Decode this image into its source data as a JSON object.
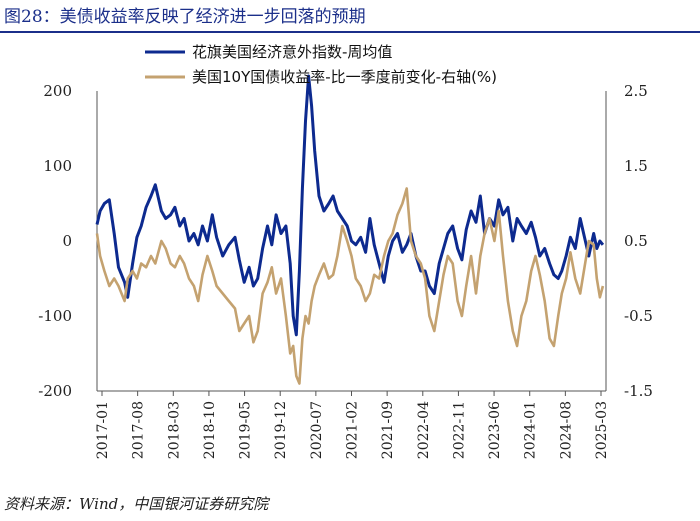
{
  "figure": {
    "title": "图28：美债收益率反映了经济进一步回落的预期",
    "source": "资料来源：Wind，中国银河证券研究院"
  },
  "colors": {
    "series1": "#0d2a8f",
    "series2": "#c4a270",
    "title": "#1b2f8a",
    "axis": "#555555"
  },
  "chart_data": {
    "type": "line",
    "title": "图28：美债收益率反映了经济进一步回落的预期",
    "x_tick_labels": [
      "2017-01",
      "2017-08",
      "2018-03",
      "2018-10",
      "2019-05",
      "2019-12",
      "2020-07",
      "2021-02",
      "2021-09",
      "2022-04",
      "2022-11",
      "2023-06",
      "2024-01",
      "2024-08",
      "2025-03"
    ],
    "x_range": [
      2017.0,
      2025.3
    ],
    "left_axis": {
      "range": [
        -200,
        200
      ],
      "ticks": [
        200,
        100,
        0,
        -100,
        -200
      ],
      "tick_labels": [
        "200",
        "100",
        "0",
        "-100",
        "-200"
      ]
    },
    "right_axis": {
      "range": [
        -1.5,
        2.5
      ],
      "ticks": [
        2.5,
        1.5,
        0.5,
        -0.5,
        -1.5
      ],
      "tick_labels": [
        "2.5",
        "1.5",
        "0.5",
        "-0.5",
        "-1.5"
      ]
    },
    "legend": {
      "placement": "top-right"
    },
    "series": [
      {
        "name": "花旗美国经济意外指数-周均值",
        "axis": "left",
        "color": "#0d2a8f",
        "x": [
          2017.0,
          2017.05,
          2017.12,
          2017.2,
          2017.28,
          2017.35,
          2017.45,
          2017.5,
          2017.58,
          2017.65,
          2017.72,
          2017.8,
          2017.88,
          2017.95,
          2018.05,
          2018.12,
          2018.2,
          2018.27,
          2018.35,
          2018.42,
          2018.5,
          2018.58,
          2018.65,
          2018.72,
          2018.8,
          2018.88,
          2018.95,
          2019.05,
          2019.15,
          2019.25,
          2019.32,
          2019.4,
          2019.48,
          2019.55,
          2019.62,
          2019.7,
          2019.78,
          2019.85,
          2019.92,
          2020.0,
          2020.08,
          2020.15,
          2020.2,
          2020.25,
          2020.3,
          2020.35,
          2020.4,
          2020.45,
          2020.5,
          2020.55,
          2020.62,
          2020.7,
          2020.78,
          2020.85,
          2020.92,
          2021.0,
          2021.08,
          2021.15,
          2021.22,
          2021.3,
          2021.38,
          2021.45,
          2021.52,
          2021.6,
          2021.68,
          2021.75,
          2021.82,
          2021.9,
          2021.98,
          2022.05,
          2022.12,
          2022.2,
          2022.28,
          2022.35,
          2022.42,
          2022.5,
          2022.58,
          2022.65,
          2022.72,
          2022.8,
          2022.88,
          2022.95,
          2023.02,
          2023.1,
          2023.18,
          2023.25,
          2023.32,
          2023.4,
          2023.48,
          2023.55,
          2023.62,
          2023.7,
          2023.78,
          2023.85,
          2023.92,
          2024.0,
          2024.08,
          2024.15,
          2024.22,
          2024.3,
          2024.38,
          2024.45,
          2024.52,
          2024.58,
          2024.65,
          2024.72,
          2024.8,
          2024.88,
          2024.95,
          2025.02,
          2025.1,
          2025.15,
          2025.2,
          2025.25
        ],
        "y": [
          22,
          40,
          50,
          55,
          10,
          -35,
          -55,
          -75,
          -30,
          5,
          20,
          45,
          60,
          75,
          40,
          30,
          35,
          45,
          20,
          30,
          0,
          10,
          -5,
          20,
          0,
          35,
          5,
          -20,
          -5,
          5,
          -25,
          -55,
          -35,
          -60,
          -50,
          -10,
          20,
          -5,
          35,
          10,
          20,
          -30,
          -100,
          -125,
          -40,
          70,
          160,
          220,
          180,
          120,
          60,
          40,
          50,
          60,
          40,
          30,
          20,
          0,
          -5,
          5,
          -15,
          30,
          -5,
          -30,
          -55,
          -20,
          0,
          10,
          -15,
          -5,
          10,
          -20,
          -40,
          -40,
          -60,
          -70,
          -30,
          -10,
          10,
          20,
          -10,
          -25,
          15,
          40,
          25,
          60,
          10,
          30,
          20,
          55,
          35,
          45,
          0,
          30,
          20,
          10,
          25,
          5,
          -20,
          -10,
          -30,
          -45,
          -50,
          -40,
          -20,
          5,
          -10,
          30,
          5,
          -20,
          10,
          -10,
          0,
          -5
        ]
      },
      {
        "name": "美国10Y国债收益率-比一季度前变化-右轴(%)",
        "axis": "right",
        "color": "#c4a270",
        "x": [
          2017.0,
          2017.05,
          2017.12,
          2017.2,
          2017.28,
          2017.35,
          2017.45,
          2017.5,
          2017.58,
          2017.65,
          2017.72,
          2017.8,
          2017.88,
          2017.95,
          2018.05,
          2018.12,
          2018.2,
          2018.27,
          2018.35,
          2018.42,
          2018.5,
          2018.58,
          2018.65,
          2018.72,
          2018.8,
          2018.88,
          2018.95,
          2019.05,
          2019.15,
          2019.25,
          2019.32,
          2019.4,
          2019.48,
          2019.55,
          2019.62,
          2019.7,
          2019.78,
          2019.85,
          2019.92,
          2020.0,
          2020.08,
          2020.15,
          2020.2,
          2020.25,
          2020.3,
          2020.35,
          2020.4,
          2020.45,
          2020.5,
          2020.55,
          2020.62,
          2020.7,
          2020.78,
          2020.85,
          2020.92,
          2021.0,
          2021.08,
          2021.15,
          2021.22,
          2021.3,
          2021.38,
          2021.45,
          2021.52,
          2021.6,
          2021.68,
          2021.75,
          2021.82,
          2021.9,
          2021.98,
          2022.05,
          2022.12,
          2022.2,
          2022.28,
          2022.35,
          2022.42,
          2022.5,
          2022.58,
          2022.65,
          2022.72,
          2022.8,
          2022.88,
          2022.95,
          2023.02,
          2023.1,
          2023.18,
          2023.25,
          2023.32,
          2023.4,
          2023.48,
          2023.55,
          2023.62,
          2023.7,
          2023.78,
          2023.85,
          2023.92,
          2024.0,
          2024.08,
          2024.15,
          2024.22,
          2024.3,
          2024.38,
          2024.45,
          2024.52,
          2024.58,
          2024.65,
          2024.72,
          2024.8,
          2024.88,
          2024.95,
          2025.02,
          2025.1,
          2025.15,
          2025.2,
          2025.25
        ],
        "y": [
          0.6,
          0.3,
          0.1,
          -0.1,
          0.0,
          -0.1,
          -0.3,
          0.0,
          0.1,
          0.0,
          0.2,
          0.15,
          0.3,
          0.2,
          0.5,
          0.4,
          0.2,
          0.15,
          0.3,
          0.2,
          0.0,
          -0.1,
          -0.3,
          0.05,
          0.3,
          0.1,
          -0.1,
          -0.2,
          -0.3,
          -0.4,
          -0.7,
          -0.6,
          -0.5,
          -0.85,
          -0.7,
          -0.2,
          -0.05,
          0.15,
          -0.2,
          0.0,
          -0.5,
          -1.0,
          -0.9,
          -1.3,
          -1.4,
          -0.8,
          -0.5,
          -0.6,
          -0.3,
          -0.1,
          0.05,
          0.2,
          0.0,
          0.05,
          0.3,
          0.7,
          0.5,
          0.3,
          0.0,
          -0.1,
          -0.3,
          -0.2,
          0.05,
          0.0,
          0.3,
          0.5,
          0.6,
          0.85,
          1.0,
          1.2,
          0.5,
          0.3,
          0.2,
          0.0,
          -0.5,
          -0.7,
          -0.3,
          0.05,
          0.3,
          0.2,
          -0.3,
          -0.5,
          -0.1,
          0.3,
          -0.2,
          0.3,
          0.6,
          0.8,
          0.5,
          0.9,
          0.3,
          -0.3,
          -0.7,
          -0.9,
          -0.5,
          -0.3,
          0.1,
          0.3,
          0.05,
          -0.3,
          -0.8,
          -0.9,
          -0.5,
          -0.2,
          0.0,
          0.35,
          0.0,
          -0.2,
          0.15,
          0.5,
          0.45,
          0.0,
          -0.25,
          -0.1
        ]
      }
    ]
  }
}
